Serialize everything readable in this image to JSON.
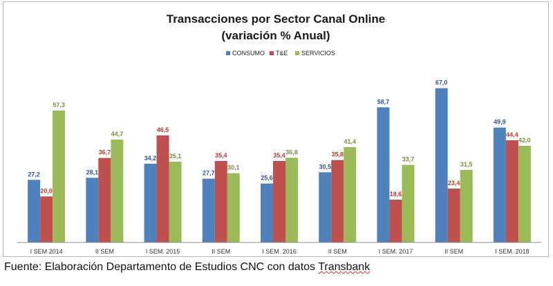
{
  "chart_data": {
    "type": "bar",
    "title": "Transacciones por Sector Canal Online",
    "subtitle": "(variación % Anual)",
    "categories": [
      "I SEM 2014",
      "II SEM",
      "I SEM. 2015",
      "II SEM",
      "I SEM. 2016",
      "II SEM",
      "I SEM. 2017",
      "II SEM",
      "I SEM. 2018"
    ],
    "series": [
      {
        "name": "CONSUMO",
        "color": "#4f81bd",
        "label_color": "#2f5597",
        "values": [
          27.2,
          28.1,
          34.2,
          27.7,
          25.6,
          30.5,
          58.7,
          67.0,
          49.9
        ],
        "labels": [
          "27,2",
          "28,1",
          "34,2",
          "27,7",
          "25,6",
          "30,5",
          "58,7",
          "67,0",
          "49,9"
        ]
      },
      {
        "name": "T&E",
        "color": "#c0504d",
        "label_color": "#c0392b",
        "values": [
          20.0,
          36.7,
          46.5,
          35.4,
          35.4,
          35.8,
          18.6,
          23.4,
          44.4
        ],
        "labels": [
          "20,0",
          "36,7",
          "46,5",
          "35,4",
          "35,4",
          "35,8",
          "18,6",
          "23,4",
          "44,4"
        ]
      },
      {
        "name": "SERVICIOS",
        "color": "#9bbb59",
        "label_color": "#76923c",
        "values": [
          57.3,
          44.7,
          35.1,
          30.1,
          36.8,
          41.4,
          33.7,
          31.5,
          42.0
        ],
        "labels": [
          "57,3",
          "44,7",
          "35,1",
          "30,1",
          "36,8",
          "41,4",
          "33,7",
          "31,5",
          "42,0"
        ]
      }
    ],
    "ylim": [
      0,
      75
    ],
    "grid": false,
    "legend_position": "top-right"
  },
  "source": {
    "prefix": "Fuente: Elaboración Departamento de Estudios CNC con datos ",
    "underlined": "Transbank"
  }
}
